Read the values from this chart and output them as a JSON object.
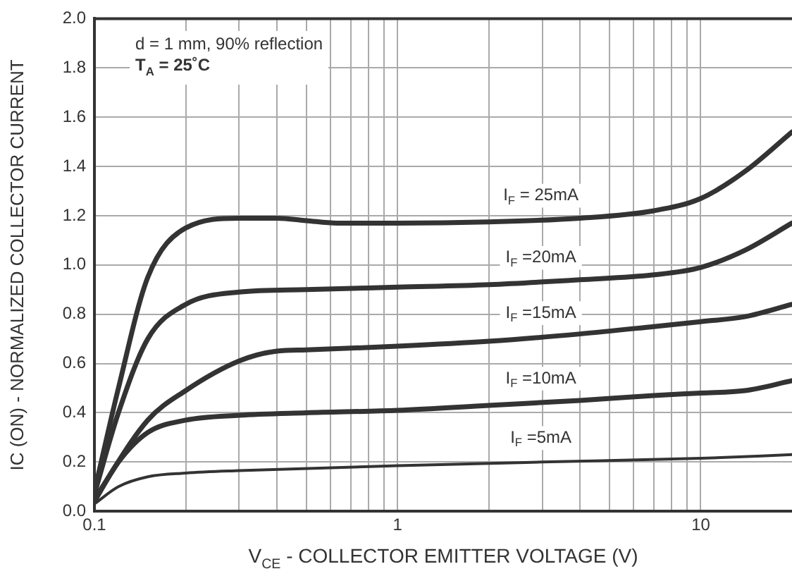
{
  "chart_data": {
    "type": "line",
    "xlabel": "V$_{CE}$ - COLLECTOR EMITTER VOLTAGE (V)",
    "ylabel": "IC (ON) - NORMALIZED COLLECTOR CURRENT",
    "annotations": [
      "d = 1 mm, 90% reflection",
      "T$_{A}$ = 25˚C"
    ],
    "log": "x",
    "xlim": [
      0.1,
      20
    ],
    "xticks": [
      0.1,
      {
        "value": 0.2,
        "label": null
      },
      {
        "value": 0.3,
        "label": null
      },
      {
        "value": 0.4,
        "label": null
      },
      {
        "value": 0.5,
        "label": null
      },
      {
        "value": 0.6,
        "label": null
      },
      {
        "value": 0.7,
        "label": null
      },
      {
        "value": 0.8,
        "label": null
      },
      {
        "value": 0.9,
        "label": null
      },
      1,
      {
        "value": 2,
        "label": null
      },
      {
        "value": 3,
        "label": null
      },
      {
        "value": 4,
        "label": null
      },
      {
        "value": 5,
        "label": null
      },
      {
        "value": 6,
        "label": null
      },
      {
        "value": 7,
        "label": null
      },
      {
        "value": 8,
        "label": null
      },
      {
        "value": 9,
        "label": null
      },
      10
    ],
    "ylim": [
      0,
      2.0
    ],
    "yticks": [
      {
        "value": 0,
        "label": "0.0"
      },
      0.2,
      0.4,
      0.6,
      0.8,
      {
        "value": 1,
        "label": "1.0"
      },
      1.2,
      1.4,
      1.6,
      1.8,
      {
        "value": 2,
        "label": "2.0"
      }
    ],
    "grid": true,
    "marker": "none",
    "series": [
      {
        "name": "I$_{F}$ = 25mA",
        "color": "#333333",
        "x": [
          0.1,
          0.12,
          0.15,
          0.2,
          0.3,
          0.4,
          0.5,
          0.63,
          1,
          2,
          4,
          7,
          10,
          14,
          20
        ],
        "values": [
          0.08,
          0.5,
          0.95,
          1.15,
          1.19,
          1.19,
          1.18,
          1.17,
          1.17,
          1.175,
          1.19,
          1.22,
          1.27,
          1.38,
          1.54
        ]
      },
      {
        "name": "I$_{F}$ =20mA",
        "color": "#333333",
        "x": [
          0.1,
          0.12,
          0.15,
          0.2,
          0.3,
          0.5,
          1,
          2,
          4,
          7,
          10,
          14,
          20
        ],
        "values": [
          0.07,
          0.4,
          0.7,
          0.84,
          0.89,
          0.9,
          0.91,
          0.92,
          0.94,
          0.96,
          0.99,
          1.06,
          1.17
        ]
      },
      {
        "name": "I$_{F}$ =15mA",
        "color": "#333333",
        "x": [
          0.1,
          0.15,
          0.2,
          0.3,
          0.4,
          0.5,
          1,
          2,
          4,
          7,
          10,
          14,
          20
        ],
        "values": [
          0.05,
          0.37,
          0.49,
          0.61,
          0.65,
          0.655,
          0.67,
          0.69,
          0.72,
          0.75,
          0.77,
          0.79,
          0.84
        ]
      },
      {
        "name": "I$_{F}$ =10mA",
        "color": "#333333",
        "x": [
          0.1,
          0.12,
          0.15,
          0.2,
          0.3,
          0.5,
          1,
          2,
          4,
          7,
          10,
          14,
          20
        ],
        "values": [
          0.04,
          0.2,
          0.32,
          0.37,
          0.39,
          0.4,
          0.41,
          0.43,
          0.45,
          0.47,
          0.48,
          0.49,
          0.53
        ]
      },
      {
        "name": "I$_{F}$ =5mA",
        "color": "#333333",
        "x": [
          0.1,
          0.12,
          0.15,
          0.2,
          0.3,
          1,
          3,
          10,
          20
        ],
        "values": [
          0.03,
          0.1,
          0.14,
          0.155,
          0.165,
          0.185,
          0.2,
          0.215,
          0.23
        ]
      }
    ]
  }
}
